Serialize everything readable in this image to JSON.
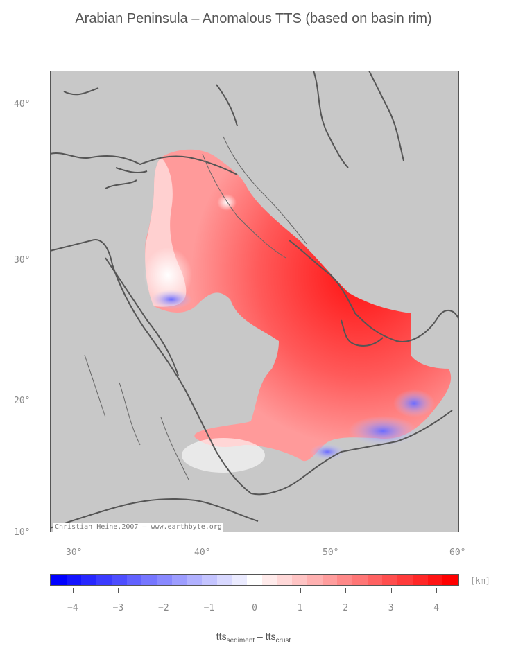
{
  "title": "Arabian Peninsula – Anomalous TTS (based on basin rim)",
  "map": {
    "lat_labels": [
      "40°",
      "30°",
      "20°",
      "10°"
    ],
    "lon_labels": [
      "30°",
      "40°",
      "50°",
      "60°"
    ],
    "background_color": "#c8c8c8",
    "coastline_color": "#555555"
  },
  "credit": "Christian Heine,2007 — www.earthbyte.org",
  "colorbar": {
    "unit": "[km]",
    "tick_labels": [
      "−4",
      "−3",
      "−2",
      "−1",
      "0",
      "1",
      "2",
      "3",
      "4"
    ],
    "min_color": "#0000ff",
    "mid_color": "#ffffff",
    "max_color": "#ff0000",
    "range": [
      -4.5,
      4.5
    ]
  },
  "axis_label": {
    "part1": "tts",
    "sub1": "sediment",
    "sep": " – ",
    "part2": "tts",
    "sub2": "crust"
  }
}
